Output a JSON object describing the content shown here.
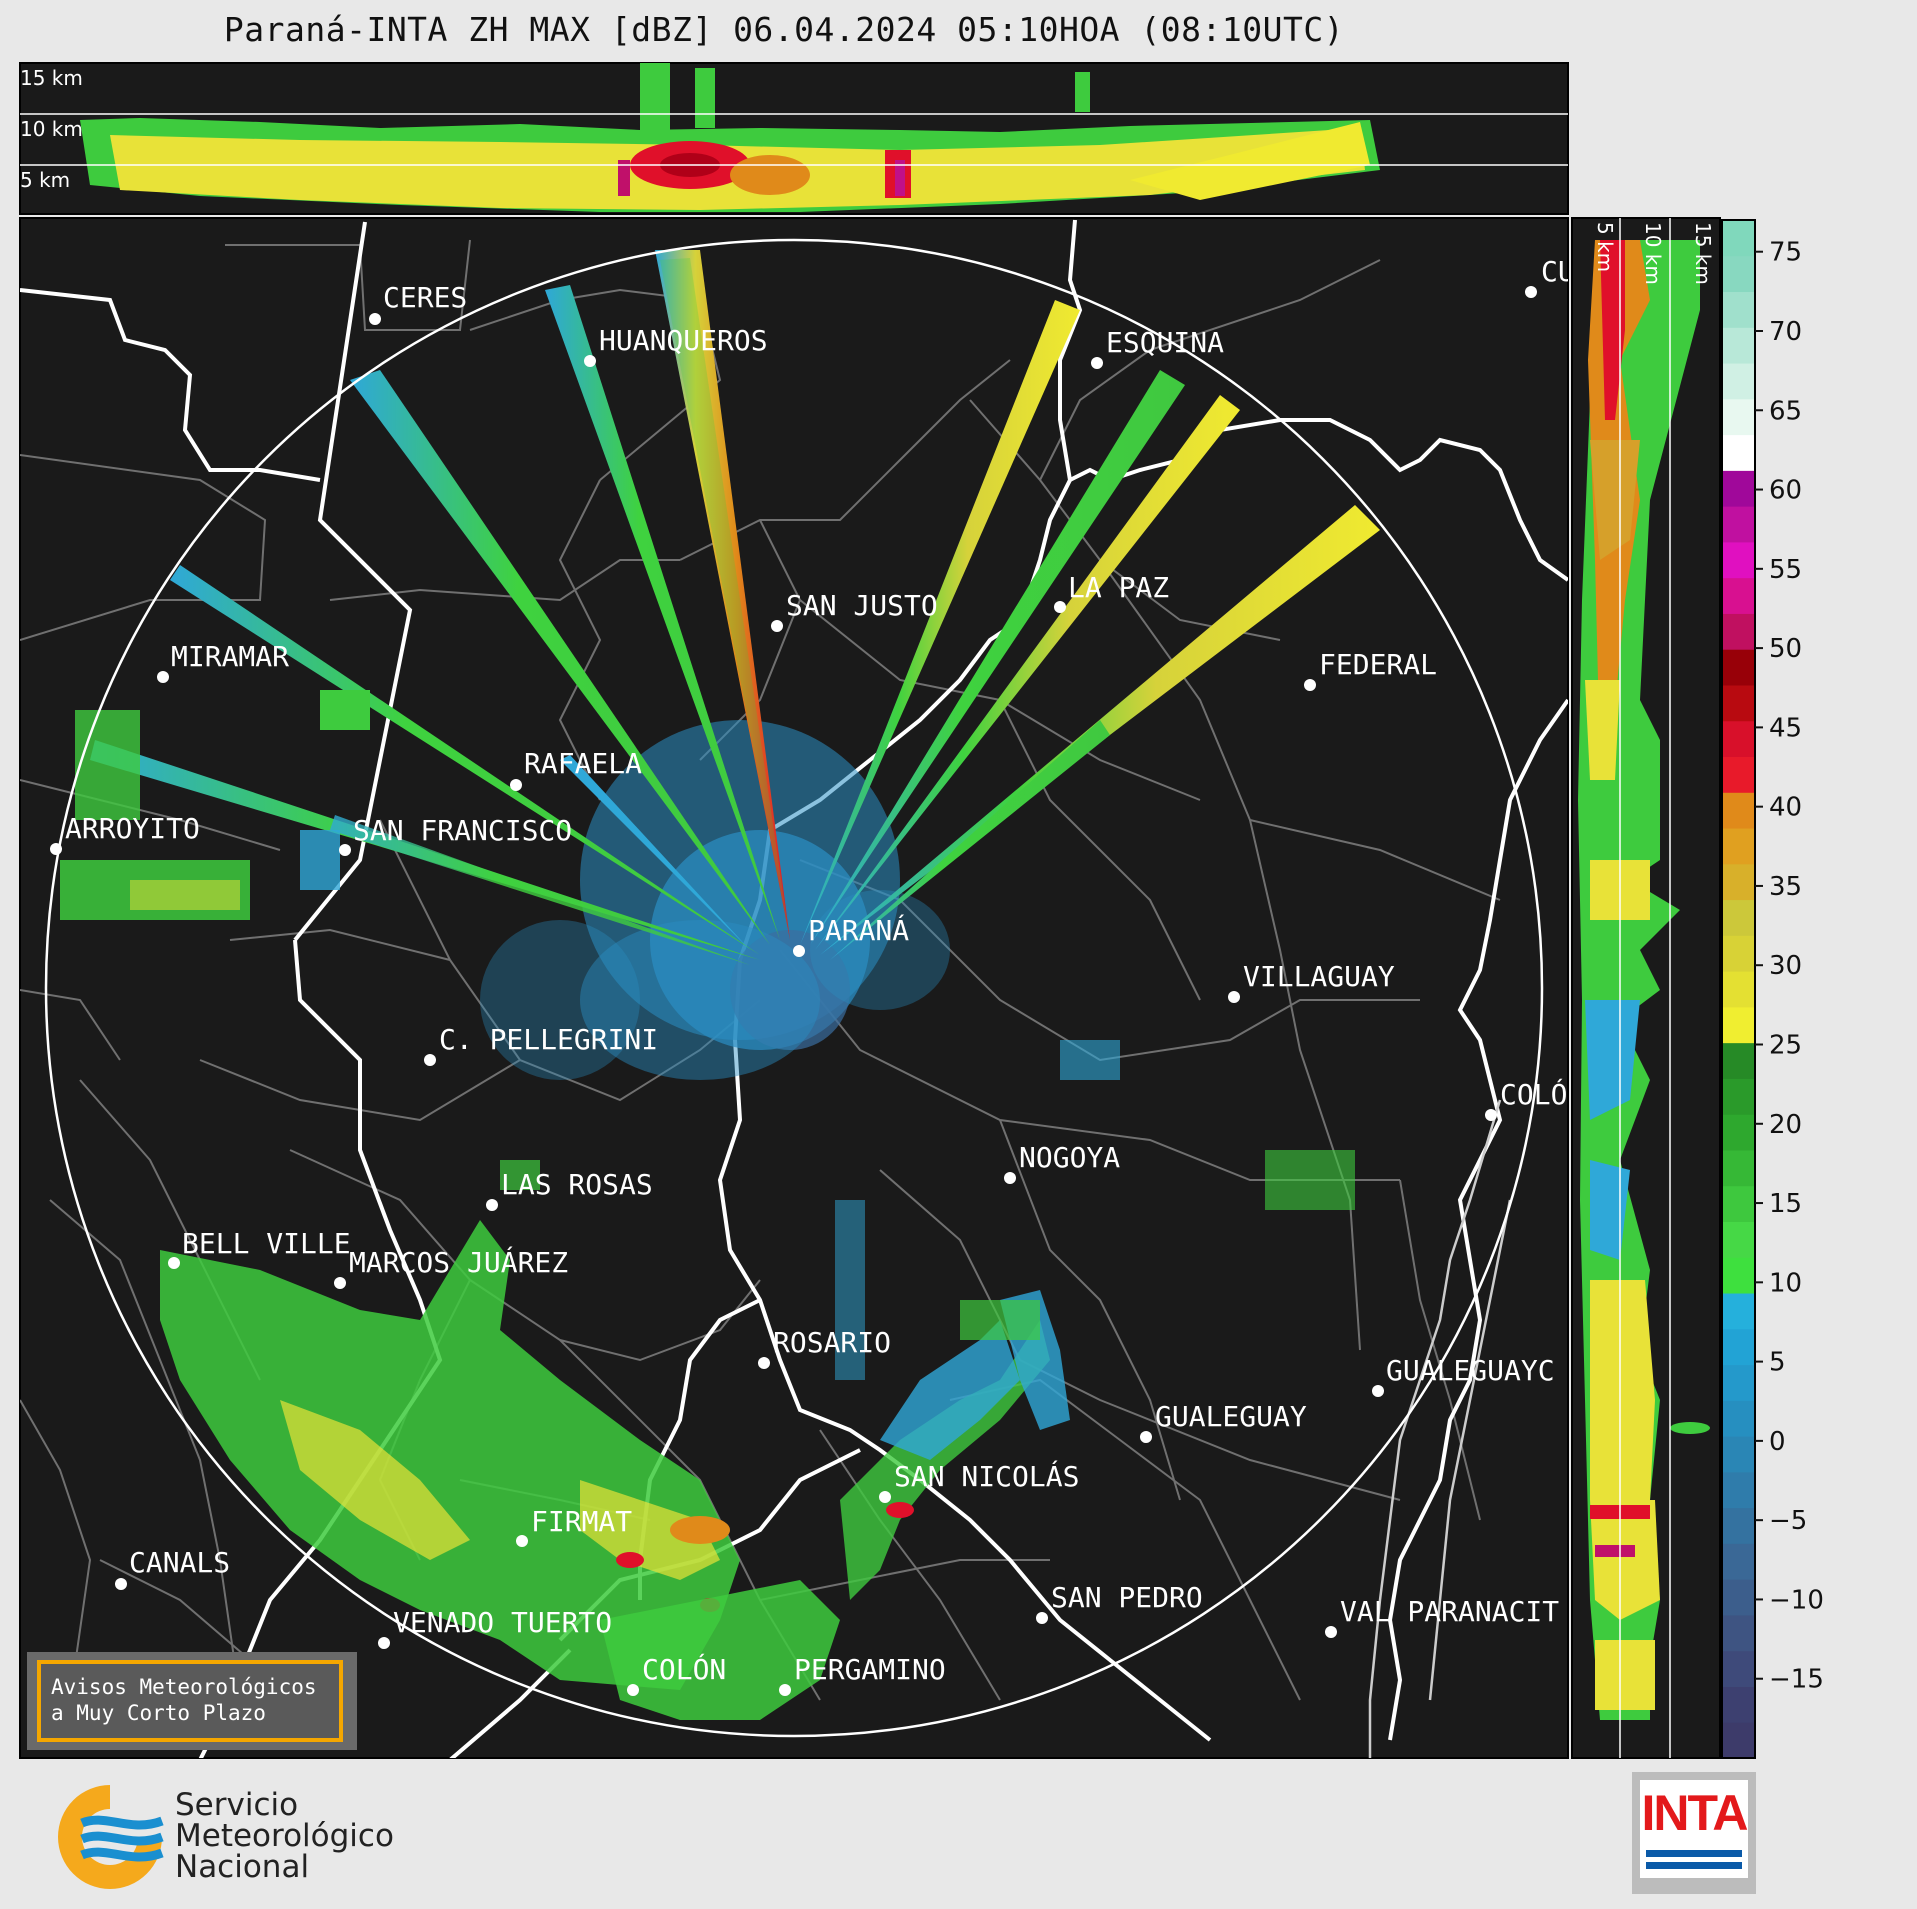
{
  "title": "Paraná-INTA ZH MAX [dBZ] 06.04.2024 05:10HOA (08:10UTC)",
  "top_profile_labels": [
    "15 km",
    "10 km",
    "5 km"
  ],
  "side_profile_labels": [
    "5 km",
    "10 km",
    "15 km"
  ],
  "colorbar": {
    "ticks": [
      "75",
      "70",
      "65",
      "60",
      "55",
      "50",
      "45",
      "40",
      "35",
      "30",
      "25",
      "20",
      "15",
      "10",
      "5",
      "0",
      "−5",
      "−10",
      "−15"
    ]
  },
  "cities": [
    {
      "name": "CERES"
    },
    {
      "name": "HUANQUEROS"
    },
    {
      "name": "ESQUINA"
    },
    {
      "name": "CU"
    },
    {
      "name": "SAN JUSTO"
    },
    {
      "name": "LA PAZ"
    },
    {
      "name": "MIRAMAR"
    },
    {
      "name": "FEDERAL"
    },
    {
      "name": "RAFAELA"
    },
    {
      "name": "ARROYITO"
    },
    {
      "name": "SAN FRANCISCO"
    },
    {
      "name": "PARANÁ"
    },
    {
      "name": "VILLAGUAY"
    },
    {
      "name": "C. PELLEGRINI"
    },
    {
      "name": "COLÓ"
    },
    {
      "name": "NOGOYA"
    },
    {
      "name": "LAS ROSAS"
    },
    {
      "name": "BELL VILLE"
    },
    {
      "name": "MARCOS JUÁREZ"
    },
    {
      "name": "ROSARIO"
    },
    {
      "name": "GUALEGUAYC"
    },
    {
      "name": "GUALEGUAY"
    },
    {
      "name": "SAN NICOLÁS"
    },
    {
      "name": "FIRMAT"
    },
    {
      "name": "CANALS"
    },
    {
      "name": "SAN PEDRO"
    },
    {
      "name": "VENADO TUERTO"
    },
    {
      "name": "VAL PARANACIT"
    },
    {
      "name": "COLÓN"
    },
    {
      "name": "PERGAMINO"
    }
  ],
  "aviso": {
    "line1": "Avisos Meteorológicos",
    "line2": "a Muy Corto Plazo"
  },
  "smn": {
    "line1": "Servicio",
    "line2": "Meteorológico",
    "line3": "Nacional"
  },
  "inta": {
    "word": "INTA"
  }
}
